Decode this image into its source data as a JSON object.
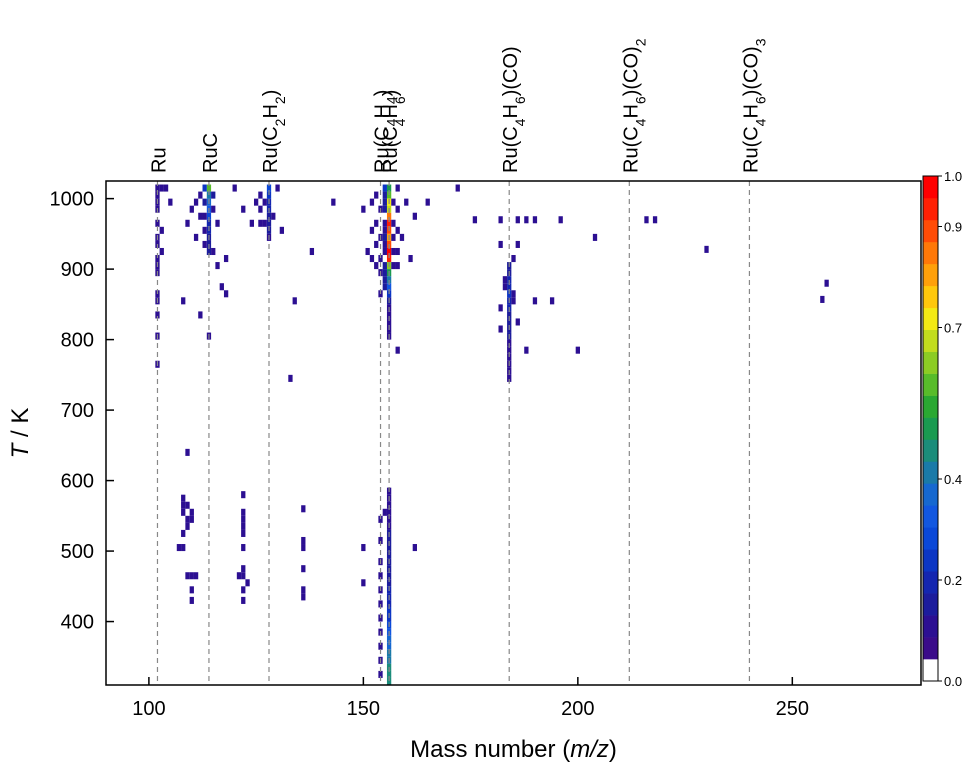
{
  "chart_data": {
    "type": "heatmap",
    "xlabel": {
      "prefix": "Mass number (",
      "italic": "m/z",
      "suffix": ")"
    },
    "ylabel": {
      "italic": "T",
      "suffix": " / K"
    },
    "xlim": [
      90,
      280
    ],
    "ylim": [
      310,
      1025
    ],
    "x_ticks": [
      100,
      150,
      200,
      250
    ],
    "y_ticks": [
      400,
      500,
      600,
      700,
      800,
      900,
      1000
    ],
    "colorbar": {
      "range": [
        0.0,
        1.0
      ],
      "ticks": [
        "0.0",
        "0.2",
        "0.4",
        "0.7",
        "0.9",
        "1.0"
      ],
      "tick_values": [
        0.0,
        0.2,
        0.4,
        0.7,
        0.9,
        1.0
      ],
      "colors": [
        "#ffffff",
        "#3a0b8a",
        "#2c0f92",
        "#1c1c9c",
        "#1426b0",
        "#0c36c4",
        "#0a48d8",
        "#1257e0",
        "#1668d0",
        "#1a7aa8",
        "#1b8c7a",
        "#1a9a50",
        "#2aa832",
        "#58bc2a",
        "#8ccc24",
        "#c2dc1e",
        "#f4ea14",
        "#ffc80c",
        "#ffa00a",
        "#ff7808",
        "#ff4c06",
        "#ff2004",
        "#ff0000"
      ]
    },
    "reference_lines": [
      {
        "x": 102,
        "label": [
          [
            "Ru",
            ""
          ]
        ]
      },
      {
        "x": 114,
        "label": [
          [
            "RuC",
            ""
          ]
        ]
      },
      {
        "x": 128,
        "label": [
          [
            "Ru(C",
            ""
          ],
          [
            "2",
            "sub"
          ],
          [
            "H",
            ""
          ],
          [
            "2",
            "sub"
          ],
          [
            ")",
            ""
          ]
        ]
      },
      {
        "x": 154,
        "label": [
          [
            "Ru(C",
            ""
          ],
          [
            "4",
            "sub"
          ],
          [
            "H",
            ""
          ],
          [
            "4",
            "sub"
          ],
          [
            ")",
            ""
          ]
        ]
      },
      {
        "x": 156,
        "label": [
          [
            "Ru(C",
            ""
          ],
          [
            "4",
            "sub"
          ],
          [
            "H",
            ""
          ],
          [
            "6",
            "sub"
          ],
          [
            ")",
            ""
          ]
        ]
      },
      {
        "x": 184,
        "label": [
          [
            "Ru(C",
            ""
          ],
          [
            "4",
            "sub"
          ],
          [
            "H",
            ""
          ],
          [
            "6",
            "sub"
          ],
          [
            ")(CO)",
            ""
          ]
        ]
      },
      {
        "x": 212,
        "label": [
          [
            "Ru(C",
            ""
          ],
          [
            "4",
            "sub"
          ],
          [
            "H",
            ""
          ],
          [
            "6",
            "sub"
          ],
          [
            ")(CO)",
            ""
          ],
          [
            "2",
            "sub"
          ]
        ]
      },
      {
        "x": 240,
        "label": [
          [
            "Ru(C",
            ""
          ],
          [
            "4",
            "sub"
          ],
          [
            "H",
            ""
          ],
          [
            "6",
            "sub"
          ],
          [
            ")(CO)",
            ""
          ],
          [
            "3",
            "sub"
          ]
        ]
      }
    ],
    "points": [
      [
        156,
        1015,
        0.48
      ],
      [
        156,
        1005,
        0.55
      ],
      [
        156,
        995,
        0.72
      ],
      [
        156,
        985,
        0.65
      ],
      [
        156,
        975,
        0.85
      ],
      [
        156,
        965,
        0.95
      ],
      [
        156,
        955,
        0.9
      ],
      [
        156,
        945,
        0.8
      ],
      [
        156,
        935,
        0.88
      ],
      [
        156,
        925,
        1.0
      ],
      [
        156,
        915,
        0.92
      ],
      [
        156,
        905,
        0.62
      ],
      [
        156,
        895,
        0.5
      ],
      [
        156,
        885,
        0.4
      ],
      [
        156,
        875,
        0.3
      ],
      [
        156,
        865,
        0.22
      ],
      [
        156,
        855,
        0.1
      ],
      [
        156,
        845,
        0.08
      ],
      [
        156,
        835,
        0.08
      ],
      [
        156,
        825,
        0.08
      ],
      [
        156,
        815,
        0.08
      ],
      [
        156,
        805,
        0.08
      ],
      [
        155,
        1015,
        0.2
      ],
      [
        155,
        1005,
        0.12
      ],
      [
        155,
        995,
        0.1
      ],
      [
        155,
        985,
        0.1
      ],
      [
        155,
        965,
        0.08
      ],
      [
        155,
        955,
        0.08
      ],
      [
        155,
        945,
        0.1
      ],
      [
        155,
        935,
        0.08
      ],
      [
        155,
        925,
        0.08
      ],
      [
        155,
        905,
        0.1
      ],
      [
        155,
        895,
        0.1
      ],
      [
        155,
        885,
        0.1
      ],
      [
        155,
        875,
        0.1
      ],
      [
        157,
        995,
        0.08
      ],
      [
        157,
        965,
        0.08
      ],
      [
        157,
        945,
        0.08
      ],
      [
        157,
        925,
        0.08
      ],
      [
        157,
        905,
        0.08
      ],
      [
        158,
        985,
        0.08
      ],
      [
        158,
        955,
        0.08
      ],
      [
        158,
        925,
        0.08
      ],
      [
        158,
        905,
        0.08
      ],
      [
        158,
        785,
        0.08
      ],
      [
        153,
        1005,
        0.08
      ],
      [
        153,
        965,
        0.08
      ],
      [
        153,
        935,
        0.08
      ],
      [
        153,
        905,
        0.08
      ],
      [
        154,
        985,
        0.08
      ],
      [
        154,
        945,
        0.08
      ],
      [
        154,
        915,
        0.08
      ],
      [
        154,
        895,
        0.08
      ],
      [
        154,
        865,
        0.08
      ],
      [
        152,
        995,
        0.08
      ],
      [
        152,
        955,
        0.08
      ],
      [
        152,
        915,
        0.08
      ],
      [
        150,
        985,
        0.08
      ],
      [
        151,
        925,
        0.08
      ],
      [
        160,
        995,
        0.08
      ],
      [
        159,
        945,
        0.08
      ],
      [
        161,
        915,
        0.08
      ],
      [
        162,
        975,
        0.08
      ],
      [
        165,
        995,
        0.08
      ],
      [
        172,
        1015,
        0.08
      ],
      [
        158,
        1015,
        0.08
      ],
      [
        143,
        995,
        0.08
      ],
      [
        138,
        925,
        0.08
      ],
      [
        131,
        955,
        0.08
      ],
      [
        156,
        585,
        0.08
      ],
      [
        156,
        575,
        0.08
      ],
      [
        156,
        565,
        0.08
      ],
      [
        156,
        555,
        0.08
      ],
      [
        156,
        545,
        0.08
      ],
      [
        156,
        535,
        0.08
      ],
      [
        156,
        525,
        0.1
      ],
      [
        156,
        515,
        0.1
      ],
      [
        156,
        505,
        0.1
      ],
      [
        156,
        495,
        0.1
      ],
      [
        156,
        485,
        0.1
      ],
      [
        156,
        475,
        0.1
      ],
      [
        156,
        465,
        0.12
      ],
      [
        156,
        455,
        0.12
      ],
      [
        156,
        445,
        0.14
      ],
      [
        156,
        435,
        0.16
      ],
      [
        156,
        425,
        0.18
      ],
      [
        156,
        415,
        0.2
      ],
      [
        156,
        405,
        0.22
      ],
      [
        156,
        395,
        0.25
      ],
      [
        156,
        385,
        0.28
      ],
      [
        156,
        375,
        0.32
      ],
      [
        156,
        365,
        0.35
      ],
      [
        156,
        355,
        0.38
      ],
      [
        156,
        345,
        0.4
      ],
      [
        156,
        335,
        0.42
      ],
      [
        156,
        325,
        0.45
      ],
      [
        156,
        315,
        0.45
      ],
      [
        154,
        545,
        0.08
      ],
      [
        154,
        515,
        0.08
      ],
      [
        154,
        485,
        0.08
      ],
      [
        154,
        465,
        0.08
      ],
      [
        154,
        445,
        0.08
      ],
      [
        154,
        425,
        0.08
      ],
      [
        154,
        405,
        0.08
      ],
      [
        154,
        385,
        0.08
      ],
      [
        154,
        365,
        0.08
      ],
      [
        154,
        345,
        0.08
      ],
      [
        154,
        325,
        0.08
      ],
      [
        155,
        555,
        0.08
      ],
      [
        150,
        505,
        0.08
      ],
      [
        150,
        455,
        0.08
      ],
      [
        162,
        505,
        0.08
      ],
      [
        114,
        1015,
        0.55
      ],
      [
        114,
        1005,
        0.4
      ],
      [
        114,
        995,
        0.35
      ],
      [
        114,
        985,
        0.3
      ],
      [
        114,
        975,
        0.25
      ],
      [
        114,
        965,
        0.18
      ],
      [
        114,
        955,
        0.15
      ],
      [
        114,
        945,
        0.12
      ],
      [
        114,
        935,
        0.1
      ],
      [
        114,
        925,
        0.1
      ],
      [
        113,
        1015,
        0.2
      ],
      [
        113,
        995,
        0.1
      ],
      [
        113,
        975,
        0.08
      ],
      [
        113,
        955,
        0.08
      ],
      [
        113,
        935,
        0.08
      ],
      [
        115,
        1005,
        0.1
      ],
      [
        115,
        985,
        0.08
      ],
      [
        115,
        925,
        0.08
      ],
      [
        112,
        1005,
        0.08
      ],
      [
        112,
        975,
        0.08
      ],
      [
        111,
        995,
        0.08
      ],
      [
        111,
        945,
        0.08
      ],
      [
        116,
        965,
        0.08
      ],
      [
        116,
        905,
        0.08
      ],
      [
        117,
        875,
        0.08
      ],
      [
        118,
        915,
        0.08
      ],
      [
        118,
        865,
        0.08
      ],
      [
        120,
        1015,
        0.08
      ],
      [
        110,
        985,
        0.08
      ],
      [
        109,
        965,
        0.08
      ],
      [
        108,
        855,
        0.08
      ],
      [
        112,
        835,
        0.08
      ],
      [
        114,
        805,
        0.08
      ],
      [
        128,
        1015,
        0.25
      ],
      [
        128,
        1005,
        0.2
      ],
      [
        128,
        995,
        0.18
      ],
      [
        128,
        985,
        0.15
      ],
      [
        128,
        975,
        0.12
      ],
      [
        128,
        965,
        0.1
      ],
      [
        128,
        955,
        0.1
      ],
      [
        128,
        945,
        0.08
      ],
      [
        127,
        995,
        0.08
      ],
      [
        127,
        965,
        0.08
      ],
      [
        126,
        985,
        0.08
      ],
      [
        126,
        965,
        0.08
      ],
      [
        125,
        995,
        0.08
      ],
      [
        129,
        975,
        0.08
      ],
      [
        124,
        965,
        0.08
      ],
      [
        122,
        985,
        0.08
      ],
      [
        130,
        1015,
        0.08
      ],
      [
        126,
        1005,
        0.08
      ],
      [
        134,
        855,
        0.08
      ],
      [
        133,
        745,
        0.08
      ],
      [
        102,
        1015,
        0.08
      ],
      [
        102,
        1005,
        0.08
      ],
      [
        102,
        995,
        0.08
      ],
      [
        102,
        985,
        0.08
      ],
      [
        102,
        965,
        0.08
      ],
      [
        102,
        945,
        0.08
      ],
      [
        102,
        935,
        0.08
      ],
      [
        102,
        915,
        0.08
      ],
      [
        102,
        905,
        0.08
      ],
      [
        102,
        895,
        0.08
      ],
      [
        102,
        865,
        0.08
      ],
      [
        102,
        855,
        0.08
      ],
      [
        102,
        835,
        0.08
      ],
      [
        102,
        805,
        0.08
      ],
      [
        102,
        765,
        0.08
      ],
      [
        103,
        1015,
        0.08
      ],
      [
        103,
        955,
        0.08
      ],
      [
        104,
        1015,
        0.08
      ],
      [
        105,
        995,
        0.08
      ],
      [
        103,
        925,
        0.08
      ],
      [
        184,
        905,
        0.1
      ],
      [
        184,
        895,
        0.12
      ],
      [
        184,
        885,
        0.15
      ],
      [
        184,
        875,
        0.18
      ],
      [
        184,
        865,
        0.2
      ],
      [
        184,
        855,
        0.18
      ],
      [
        184,
        845,
        0.15
      ],
      [
        184,
        835,
        0.12
      ],
      [
        184,
        825,
        0.1
      ],
      [
        184,
        815,
        0.1
      ],
      [
        184,
        805,
        0.1
      ],
      [
        184,
        795,
        0.08
      ],
      [
        184,
        785,
        0.08
      ],
      [
        184,
        775,
        0.08
      ],
      [
        184,
        765,
        0.08
      ],
      [
        184,
        755,
        0.08
      ],
      [
        184,
        745,
        0.08
      ],
      [
        183,
        885,
        0.08
      ],
      [
        183,
        875,
        0.08
      ],
      [
        185,
        865,
        0.08
      ],
      [
        185,
        855,
        0.08
      ],
      [
        186,
        825,
        0.08
      ],
      [
        182,
        845,
        0.08
      ],
      [
        182,
        815,
        0.08
      ],
      [
        182,
        935,
        0.08
      ],
      [
        185,
        915,
        0.08
      ],
      [
        186,
        935,
        0.08
      ],
      [
        188,
        785,
        0.08
      ],
      [
        190,
        855,
        0.08
      ],
      [
        194,
        855,
        0.08
      ],
      [
        200,
        785,
        0.08
      ],
      [
        176,
        970,
        0.08
      ],
      [
        182,
        970,
        0.08
      ],
      [
        188,
        970,
        0.08
      ],
      [
        190,
        970,
        0.08
      ],
      [
        196,
        970,
        0.08
      ],
      [
        186,
        970,
        0.08
      ],
      [
        204,
        945,
        0.08
      ],
      [
        216,
        970,
        0.08
      ],
      [
        218,
        970,
        0.08
      ],
      [
        230,
        928,
        0.08
      ],
      [
        258,
        880,
        0.08
      ],
      [
        257,
        857,
        0.08
      ],
      [
        108,
        575,
        0.08
      ],
      [
        108,
        565,
        0.08
      ],
      [
        108,
        555,
        0.08
      ],
      [
        109,
        545,
        0.08
      ],
      [
        109,
        565,
        0.08
      ],
      [
        110,
        555,
        0.08
      ],
      [
        110,
        545,
        0.08
      ],
      [
        109,
        535,
        0.08
      ],
      [
        108,
        525,
        0.08
      ],
      [
        107,
        505,
        0.08
      ],
      [
        108,
        505,
        0.08
      ],
      [
        110,
        465,
        0.08
      ],
      [
        109,
        465,
        0.08
      ],
      [
        111,
        465,
        0.08
      ],
      [
        110,
        445,
        0.08
      ],
      [
        110,
        430,
        0.08
      ],
      [
        109,
        640,
        0.08
      ],
      [
        122,
        580,
        0.08
      ],
      [
        122,
        555,
        0.08
      ],
      [
        122,
        545,
        0.08
      ],
      [
        122,
        535,
        0.08
      ],
      [
        122,
        525,
        0.08
      ],
      [
        122,
        505,
        0.08
      ],
      [
        122,
        475,
        0.08
      ],
      [
        122,
        465,
        0.08
      ],
      [
        122,
        445,
        0.08
      ],
      [
        122,
        430,
        0.08
      ],
      [
        121,
        465,
        0.08
      ],
      [
        123,
        455,
        0.08
      ],
      [
        136,
        560,
        0.08
      ],
      [
        136,
        515,
        0.08
      ],
      [
        136,
        505,
        0.08
      ],
      [
        136,
        475,
        0.08
      ],
      [
        136,
        445,
        0.08
      ],
      [
        136,
        435,
        0.08
      ]
    ]
  }
}
